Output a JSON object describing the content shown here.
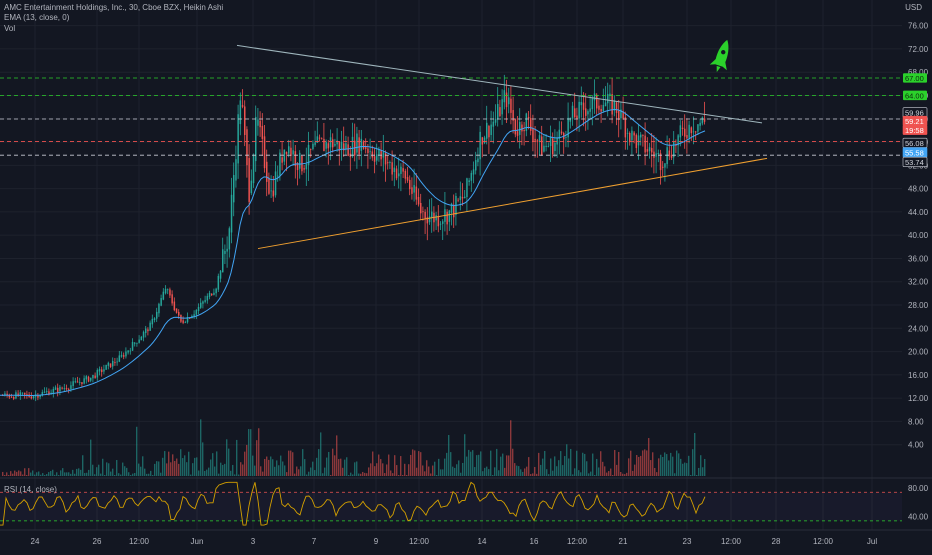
{
  "header": {
    "symbol_line": "AMC Entertainment Holdings, Inc., 30, Cboe BZX, Heikin Ashi",
    "ema_line": "EMA (13, close, 0)",
    "vol_line": "Vol",
    "currency": "USD"
  },
  "rsi_panel": {
    "label": "RSI (14, close)",
    "ticks": [
      "80.00",
      "40.00"
    ]
  },
  "colors": {
    "background": "#131722",
    "up": "#26a69a",
    "down": "#ef5350",
    "ema": "#42a5f5",
    "rsi": "#d4a000",
    "resistance_trendline": "#9fb6bd",
    "support_trendline": "#f0a030",
    "green_level": "#2bd12b",
    "white_level": "#c9ccd6"
  },
  "chart_data": {
    "type": "candlestick",
    "title": "AMC Entertainment Holdings, Inc., 30, Cboe BZX, Heikin Ashi",
    "ylim": [
      0,
      78
    ],
    "y_ticks": [
      "76.00",
      "72.00",
      "68.00",
      "64.00",
      "60.00",
      "56.00",
      "52.00",
      "48.00",
      "44.00",
      "40.00",
      "36.00",
      "32.00",
      "28.00",
      "24.00",
      "20.00",
      "16.00",
      "12.00",
      "8.00",
      "4.00"
    ],
    "x_ticks": [
      "24",
      "26",
      "12:00",
      "Jun",
      "3",
      "7",
      "9",
      "12:00",
      "14",
      "16",
      "12:00",
      "21",
      "23",
      "12:00",
      "28",
      "12:00",
      "Jul"
    ],
    "price_path_points": [
      [
        0,
        12.5
      ],
      [
        30,
        12.4
      ],
      [
        60,
        13.6
      ],
      [
        90,
        15.5
      ],
      [
        120,
        19
      ],
      [
        150,
        24.5
      ],
      [
        165,
        31
      ],
      [
        180,
        25
      ],
      [
        195,
        27
      ],
      [
        215,
        31
      ],
      [
        228,
        40
      ],
      [
        240,
        65
      ],
      [
        248,
        47
      ],
      [
        256,
        60
      ],
      [
        270,
        47
      ],
      [
        285,
        56
      ],
      [
        300,
        52
      ],
      [
        315,
        55
      ],
      [
        330,
        56
      ],
      [
        345,
        55
      ],
      [
        360,
        56
      ],
      [
        375,
        54
      ],
      [
        390,
        52
      ],
      [
        405,
        50
      ],
      [
        420,
        44
      ],
      [
        435,
        43
      ],
      [
        450,
        44
      ],
      [
        465,
        47
      ],
      [
        480,
        57
      ],
      [
        495,
        60
      ],
      [
        505,
        64
      ],
      [
        515,
        58
      ],
      [
        525,
        60
      ],
      [
        540,
        55
      ],
      [
        555,
        56
      ],
      [
        570,
        60
      ],
      [
        585,
        62
      ],
      [
        600,
        63
      ],
      [
        615,
        62
      ],
      [
        630,
        57
      ],
      [
        645,
        55
      ],
      [
        660,
        53
      ],
      [
        675,
        56
      ],
      [
        690,
        59
      ],
      [
        705,
        59.5
      ]
    ],
    "trendlines": [
      {
        "name": "resistance",
        "from": [
          237,
          72.6
        ],
        "to": [
          762,
          59.3
        ]
      },
      {
        "name": "support",
        "from": [
          258,
          37.7
        ],
        "to": [
          767,
          53.2
        ]
      }
    ],
    "horizontal_levels": [
      {
        "value": 67.0,
        "label": "67.00",
        "style": "green-dashed"
      },
      {
        "value": 64.0,
        "label": "64.00",
        "style": "green-dashed"
      },
      {
        "value": 59.96,
        "label": "59.96",
        "style": "white-dashed"
      },
      {
        "value": 56.08,
        "label": "56.08",
        "style": "red-dashed"
      },
      {
        "value": 53.74,
        "label": "53.74",
        "style": "white-dashed"
      }
    ],
    "price_labels": [
      {
        "value": "59.96",
        "kind": "level"
      },
      {
        "value": "59.21",
        "kind": "last-price"
      },
      {
        "value": "19:58",
        "kind": "countdown"
      },
      {
        "value": "56.08",
        "kind": "level"
      },
      {
        "value": "55.58",
        "kind": "ema"
      },
      {
        "value": "53.74",
        "kind": "level"
      }
    ],
    "rsi": {
      "levels": [
        70,
        30
      ],
      "ylim": [
        20,
        90
      ]
    },
    "annotations": [
      {
        "type": "rocket-icon",
        "color": "#2bd12b"
      }
    ]
  }
}
